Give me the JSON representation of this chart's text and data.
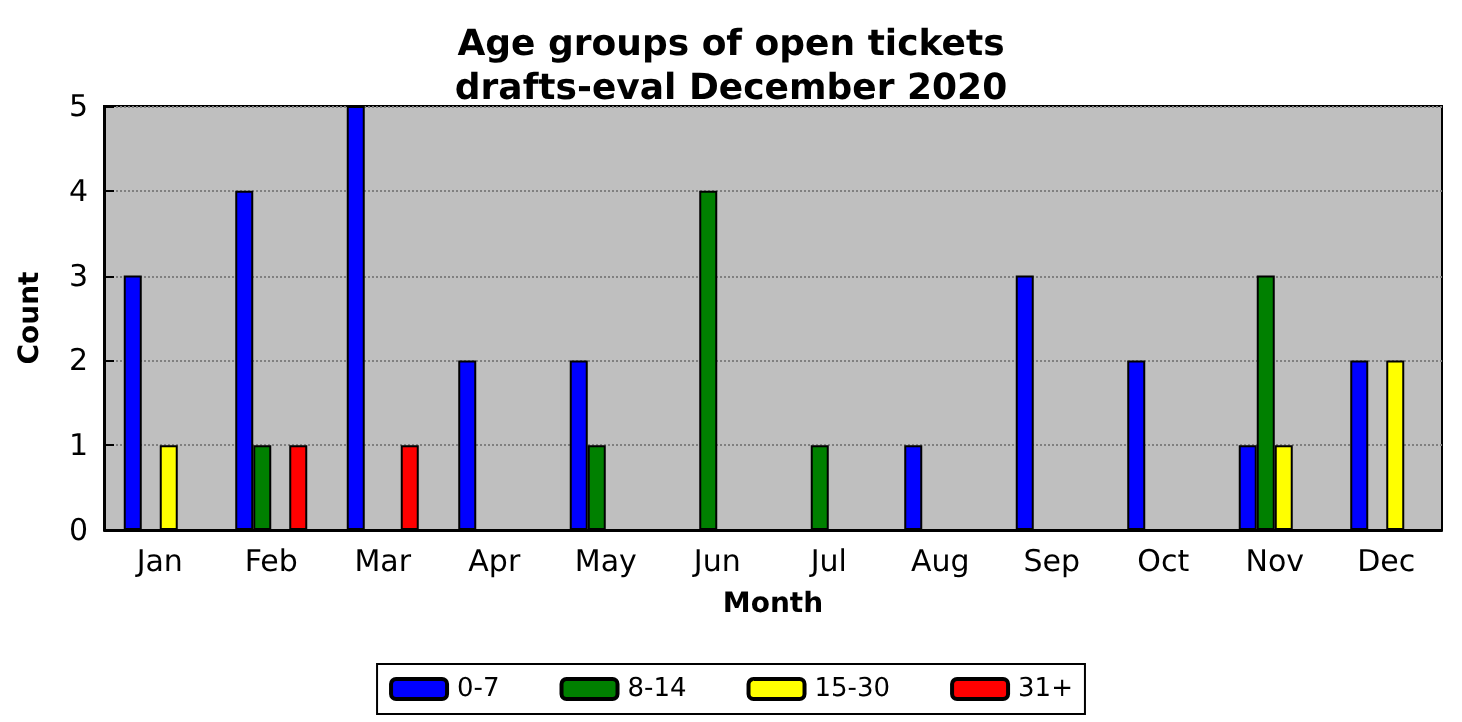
{
  "chart_data": {
    "type": "bar",
    "title": "Age groups of open tickets\ndrafts-eval December 2020",
    "xlabel": "Month",
    "ylabel": "Count",
    "categories": [
      "Jan",
      "Feb",
      "Mar",
      "Apr",
      "May",
      "Jun",
      "Jul",
      "Aug",
      "Sep",
      "Oct",
      "Nov",
      "Dec"
    ],
    "series": [
      {
        "name": "0-7",
        "color": "#0000ff",
        "values": [
          3,
          4,
          5,
          2,
          2,
          0,
          0,
          1,
          3,
          2,
          1,
          2
        ]
      },
      {
        "name": "8-14",
        "color": "#008000",
        "values": [
          0,
          1,
          0,
          0,
          1,
          4,
          1,
          0,
          0,
          0,
          3,
          0
        ]
      },
      {
        "name": "15-30",
        "color": "#ffff00",
        "values": [
          1,
          0,
          0,
          0,
          0,
          0,
          0,
          0,
          0,
          0,
          1,
          2
        ]
      },
      {
        "name": "31+",
        "color": "#ff0000",
        "values": [
          0,
          1,
          1,
          0,
          0,
          0,
          0,
          0,
          0,
          0,
          0,
          0
        ]
      }
    ],
    "ylim": [
      0,
      5
    ],
    "yticks": [
      0,
      1,
      2,
      3,
      4,
      5
    ],
    "grid": "y",
    "legend": "bottom"
  }
}
